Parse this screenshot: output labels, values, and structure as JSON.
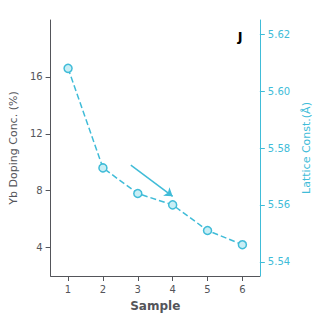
{
  "chart_data": {
    "type": "line",
    "x_label": "Sample",
    "y_label": "Yb Doping Conc. (%)",
    "y2_label": "Lattice Const.(Å)",
    "x": [
      1,
      2,
      3,
      4,
      5,
      6
    ],
    "xlim": [
      0.5,
      6.5
    ],
    "xticks": [
      1,
      2,
      3,
      4,
      5,
      6
    ],
    "ylim": [
      2,
      20
    ],
    "yticks": [
      4,
      8,
      12,
      16
    ],
    "y2lim": [
      5.535,
      5.625
    ],
    "y2ticks": [
      5.54,
      5.56,
      5.58,
      {
        "value": 5.6,
        "label": "5.60"
      },
      5.62
    ],
    "series": [
      {
        "values": [
          5.608,
          5.573,
          5.564,
          5.56,
          5.551,
          5.546
        ],
        "axis": "y2",
        "color": "#40BCD8",
        "marker": "circle",
        "line_style": "dashed"
      }
    ],
    "annotations": [
      {
        "text": "J"
      }
    ],
    "arrows": [
      {
        "x": [
          2.8,
          4.0
        ],
        "y": [
          5.574,
          5.563
        ]
      }
    ],
    "grid": false
  }
}
